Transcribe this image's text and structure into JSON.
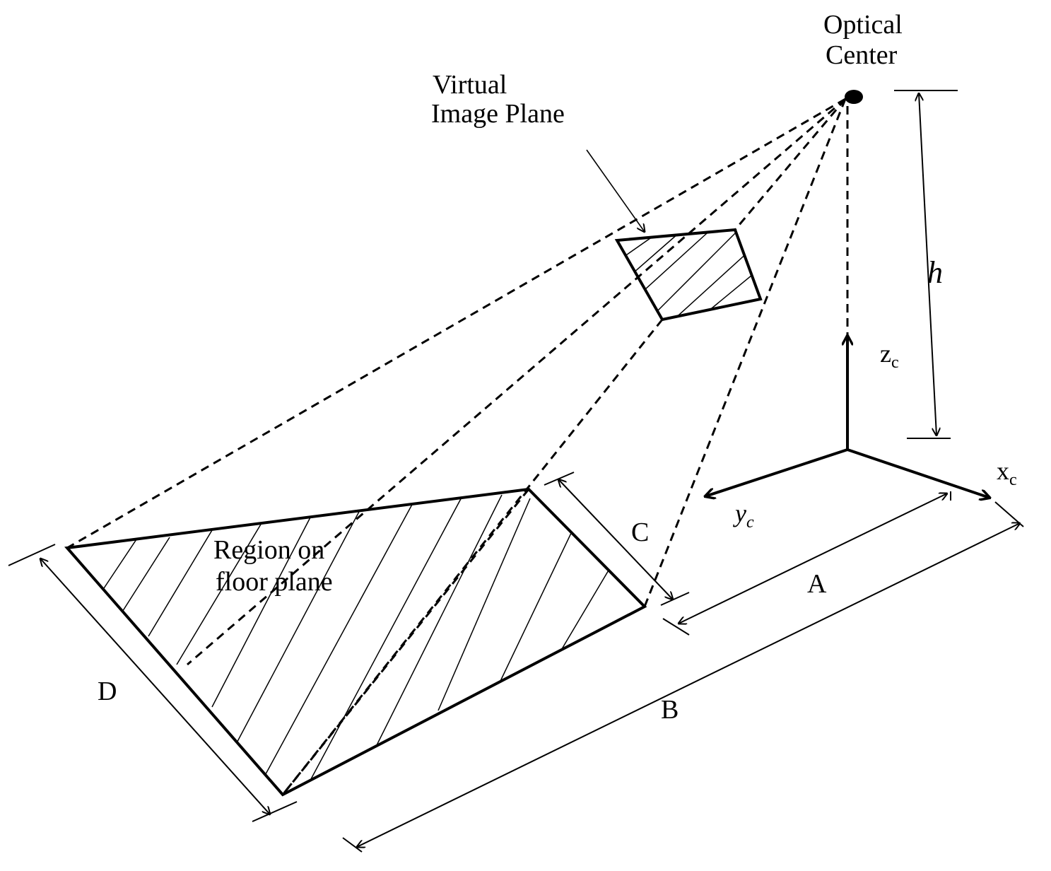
{
  "labels": {
    "optical_center_line1": "Optical",
    "optical_center_line2": "Center",
    "virtual_plane_line1": "Virtual",
    "virtual_plane_line2": "Image Plane",
    "region_line1": "Region on",
    "region_line2": "floor plane",
    "h": "h",
    "zc_main": "z",
    "zc_sub": "c",
    "xc_main": "x",
    "xc_sub": "c",
    "yc_main": "y",
    "yc_sub": "c",
    "A": "A",
    "B": "B",
    "C": "C",
    "D": "D"
  }
}
